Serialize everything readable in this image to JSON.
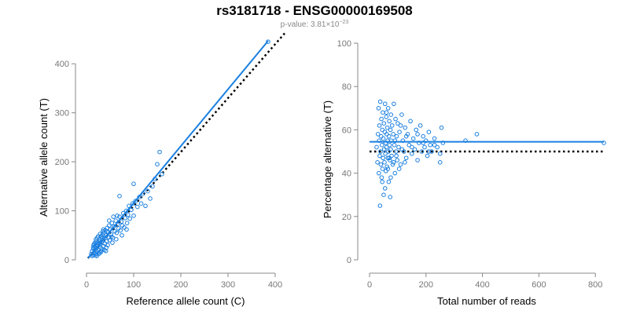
{
  "title": "rs3181718 - ENSG00000169508",
  "subtitle": {
    "prefix": "p-value: 3.81×10",
    "exponent": "−23"
  },
  "colors": {
    "points": "#1a7fe0",
    "fit_line": "#1a7fe0",
    "reference_line": "#000000"
  },
  "chart_data": [
    {
      "type": "scatter",
      "xlabel": "Reference allele count (C)",
      "ylabel": "Alternative allele count (T)",
      "xlim": [
        0,
        420
      ],
      "ylim": [
        0,
        450
      ],
      "xticks": [
        0,
        100,
        200,
        300,
        400
      ],
      "yticks": [
        0,
        100,
        200,
        300,
        400
      ],
      "points": [
        [
          10,
          12
        ],
        [
          12,
          18
        ],
        [
          14,
          10
        ],
        [
          15,
          22
        ],
        [
          16,
          14
        ],
        [
          17,
          27
        ],
        [
          18,
          20
        ],
        [
          19,
          12
        ],
        [
          20,
          30
        ],
        [
          21,
          24
        ],
        [
          22,
          17
        ],
        [
          23,
          35
        ],
        [
          24,
          28
        ],
        [
          25,
          20
        ],
        [
          26,
          38
        ],
        [
          27,
          15
        ],
        [
          28,
          42
        ],
        [
          29,
          31
        ],
        [
          30,
          25
        ],
        [
          31,
          48
        ],
        [
          32,
          36
        ],
        [
          33,
          22
        ],
        [
          34,
          52
        ],
        [
          35,
          40
        ],
        [
          36,
          28
        ],
        [
          37,
          55
        ],
        [
          38,
          44
        ],
        [
          39,
          33
        ],
        [
          40,
          60
        ],
        [
          41,
          18
        ],
        [
          42,
          50
        ],
        [
          43,
          38
        ],
        [
          44,
          65
        ],
        [
          45,
          30
        ],
        [
          46,
          56
        ],
        [
          47,
          46
        ],
        [
          48,
          70
        ],
        [
          49,
          40
        ],
        [
          50,
          62
        ],
        [
          52,
          52
        ],
        [
          54,
          75
        ],
        [
          56,
          45
        ],
        [
          58,
          68
        ],
        [
          60,
          58
        ],
        [
          62,
          80
        ],
        [
          64,
          55
        ],
        [
          66,
          72
        ],
        [
          68,
          64
        ],
        [
          70,
          88
        ],
        [
          72,
          60
        ],
        [
          74,
          78
        ],
        [
          76,
          70
        ],
        [
          78,
          95
        ],
        [
          80,
          66
        ],
        [
          82,
          85
        ],
        [
          84,
          100
        ],
        [
          86,
          75
        ],
        [
          88,
          92
        ],
        [
          90,
          110
        ],
        [
          92,
          84
        ],
        [
          95,
          102
        ],
        [
          98,
          115
        ],
        [
          100,
          90
        ],
        [
          104,
          120
        ],
        [
          108,
          108
        ],
        [
          112,
          128
        ],
        [
          116,
          115
        ],
        [
          120,
          135
        ],
        [
          125,
          110
        ],
        [
          130,
          140
        ],
        [
          135,
          125
        ],
        [
          140,
          150
        ],
        [
          145,
          165
        ],
        [
          150,
          195
        ],
        [
          155,
          220
        ],
        [
          160,
          175
        ],
        [
          100,
          155
        ],
        [
          70,
          130
        ],
        [
          18,
          35
        ],
        [
          22,
          8
        ],
        [
          27,
          33
        ],
        [
          33,
          44
        ],
        [
          38,
          20
        ],
        [
          44,
          58
        ],
        [
          55,
          35
        ],
        [
          65,
          90
        ],
        [
          75,
          50
        ],
        [
          85,
          62
        ],
        [
          15,
          30
        ],
        [
          20,
          42
        ],
        [
          25,
          48
        ],
        [
          30,
          15
        ],
        [
          36,
          62
        ],
        [
          42,
          25
        ],
        [
          48,
          80
        ],
        [
          53,
          47
        ],
        [
          57,
          88
        ],
        [
          63,
          42
        ],
        [
          12,
          8
        ],
        [
          14,
          25
        ],
        [
          16,
          32
        ],
        [
          19,
          9
        ],
        [
          21,
          38
        ],
        [
          23,
          45
        ],
        [
          26,
          12
        ],
        [
          29,
          53
        ],
        [
          31,
          18
        ],
        [
          35,
          58
        ],
        [
          385,
          445
        ]
      ],
      "fit_line": {
        "slope": 1.16,
        "intercept": 0,
        "x_range": [
          3,
          385
        ]
      },
      "reference_line": {
        "slope": 1.1,
        "intercept": 0,
        "x_range": [
          3,
          420
        ]
      }
    },
    {
      "type": "scatter",
      "xlabel": "Total number of reads",
      "ylabel": "Percentage alternative (T)",
      "xlim": [
        0,
        830
      ],
      "ylim": [
        0,
        100
      ],
      "xticks": [
        0,
        200,
        400,
        600,
        800
      ],
      "yticks": [
        0,
        20,
        40,
        60,
        80,
        100
      ],
      "points": [
        [
          25,
          52
        ],
        [
          28,
          45
        ],
        [
          30,
          58
        ],
        [
          32,
          70
        ],
        [
          33,
          40
        ],
        [
          34,
          55
        ],
        [
          35,
          62
        ],
        [
          36,
          48
        ],
        [
          37,
          25
        ],
        [
          38,
          73
        ],
        [
          39,
          50
        ],
        [
          40,
          44
        ],
        [
          41,
          57
        ],
        [
          42,
          65
        ],
        [
          43,
          38
        ],
        [
          44,
          53
        ],
        [
          45,
          60
        ],
        [
          46,
          42
        ],
        [
          47,
          68
        ],
        [
          48,
          47
        ],
        [
          49,
          56
        ],
        [
          50,
          30
        ],
        [
          51,
          63
        ],
        [
          52,
          51
        ],
        [
          53,
          45
        ],
        [
          54,
          59
        ],
        [
          55,
          72
        ],
        [
          56,
          49
        ],
        [
          57,
          54
        ],
        [
          58,
          41
        ],
        [
          59,
          66
        ],
        [
          60,
          52
        ],
        [
          61,
          58
        ],
        [
          62,
          43
        ],
        [
          63,
          61
        ],
        [
          64,
          55
        ],
        [
          65,
          47
        ],
        [
          66,
          70
        ],
        [
          67,
          50
        ],
        [
          68,
          36
        ],
        [
          69,
          57
        ],
        [
          70,
          64
        ],
        [
          71,
          53
        ],
        [
          72,
          46
        ],
        [
          73,
          29
        ],
        [
          74,
          60
        ],
        [
          75,
          51
        ],
        [
          76,
          67
        ],
        [
          77,
          55
        ],
        [
          78,
          48
        ],
        [
          80,
          62
        ],
        [
          82,
          44
        ],
        [
          84,
          58
        ],
        [
          86,
          72
        ],
        [
          88,
          53
        ],
        [
          90,
          40
        ],
        [
          92,
          65
        ],
        [
          94,
          50
        ],
        [
          96,
          57
        ],
        [
          98,
          46
        ],
        [
          100,
          63
        ],
        [
          103,
          52
        ],
        [
          106,
          59
        ],
        [
          110,
          44
        ],
        [
          114,
          67
        ],
        [
          118,
          55
        ],
        [
          122,
          50
        ],
        [
          126,
          61
        ],
        [
          130,
          47
        ],
        [
          135,
          58
        ],
        [
          140,
          53
        ],
        [
          145,
          64
        ],
        [
          150,
          49
        ],
        [
          155,
          56
        ],
        [
          160,
          51
        ],
        [
          165,
          60
        ],
        [
          170,
          46
        ],
        [
          175,
          54
        ],
        [
          180,
          62
        ],
        [
          185,
          50
        ],
        [
          190,
          57
        ],
        [
          195,
          52
        ],
        [
          200,
          55
        ],
        [
          205,
          48
        ],
        [
          210,
          59
        ],
        [
          215,
          53
        ],
        [
          220,
          50
        ],
        [
          230,
          56
        ],
        [
          240,
          52
        ],
        [
          250,
          45
        ],
        [
          255,
          61
        ],
        [
          260,
          54
        ],
        [
          340,
          55
        ],
        [
          380,
          58
        ],
        [
          830,
          54
        ],
        [
          45,
          36
        ],
        [
          55,
          33
        ],
        [
          65,
          42
        ],
        [
          75,
          38
        ],
        [
          85,
          45
        ],
        [
          95,
          48
        ],
        [
          105,
          42
        ],
        [
          115,
          51
        ],
        [
          125,
          45
        ],
        [
          60,
          68
        ],
        [
          70,
          47
        ],
        [
          90,
          55
        ],
        [
          110,
          62
        ],
        [
          130,
          57
        ],
        [
          150,
          52
        ],
        [
          170,
          58
        ],
        [
          190,
          54
        ],
        [
          210,
          50
        ],
        [
          230,
          53
        ],
        [
          250,
          49
        ]
      ],
      "fit_line": {
        "slope": 0,
        "intercept": 54.5,
        "x_range": [
          0,
          830
        ]
      },
      "reference_line": {
        "slope": 0,
        "intercept": 50,
        "x_range": [
          0,
          830
        ]
      }
    }
  ]
}
